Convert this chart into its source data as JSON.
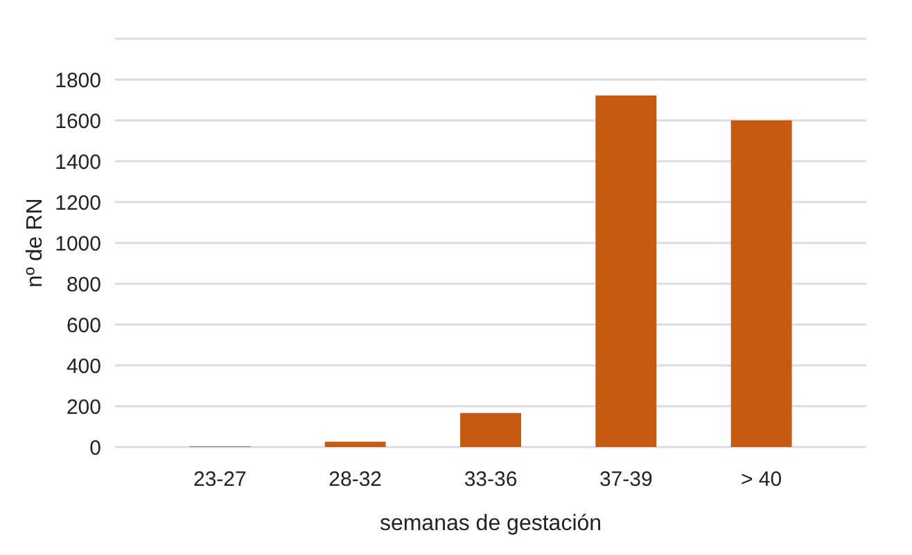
{
  "chart_data": {
    "type": "bar",
    "xlabel": "semanas de gestación",
    "ylabel": "nº de RN",
    "categories": [
      "23-27",
      "28-32",
      "33-36",
      "37-39",
      "> 40"
    ],
    "values": [
      3,
      26,
      167,
      1722,
      1600
    ],
    "color": "#c55a11",
    "ylim": [
      0,
      2000
    ],
    "yticks": [
      0,
      200,
      400,
      600,
      800,
      1000,
      1200,
      1400,
      1600,
      1800,
      {
        "value": 2000,
        "label": null
      }
    ],
    "grid": "y"
  }
}
